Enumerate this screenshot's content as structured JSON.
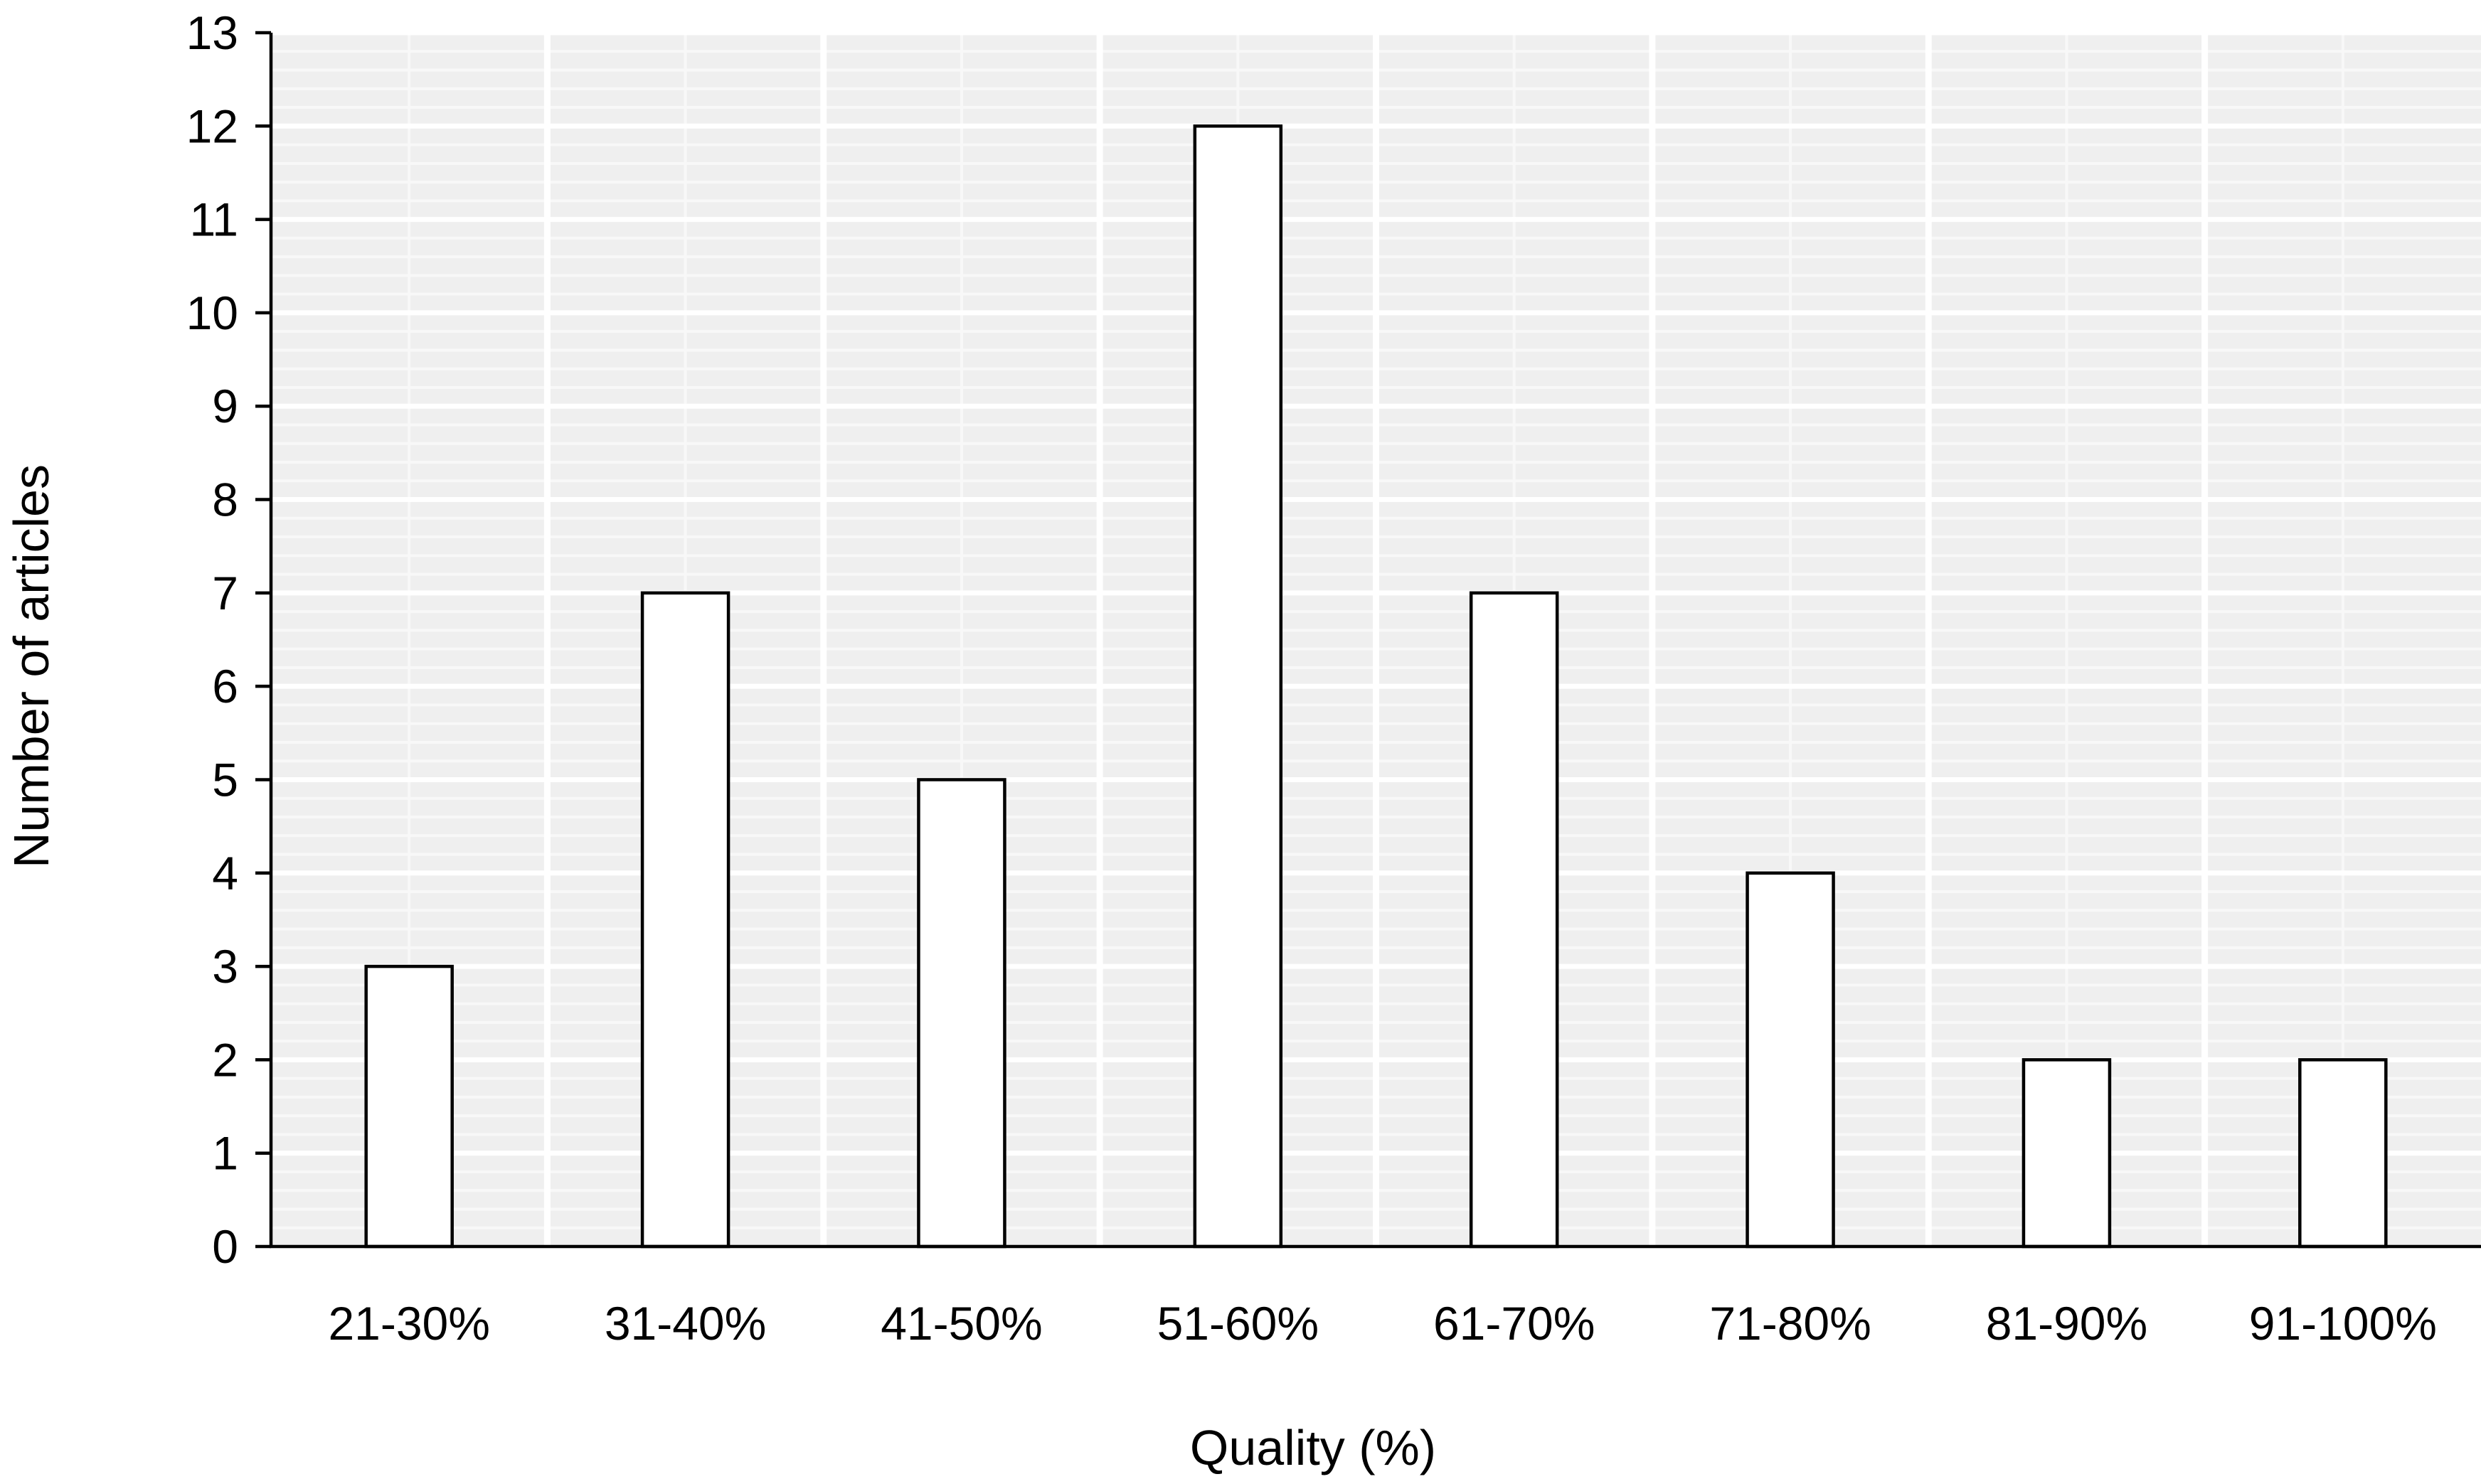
{
  "chart_data": {
    "type": "bar",
    "title": "",
    "xlabel": "Quality (%)",
    "ylabel": "Number of articles",
    "categories": [
      "21-30%",
      "31-40%",
      "41-50%",
      "51-60%",
      "61-70%",
      "71-80%",
      "81-90%",
      "91-100%"
    ],
    "values": [
      3,
      7,
      5,
      12,
      7,
      4,
      2,
      2
    ],
    "ylim": [
      0,
      13
    ],
    "yticks": [
      "0",
      "1",
      "2",
      "3",
      "4",
      "5",
      "6",
      "7",
      "8",
      "9",
      "10",
      "11",
      "12",
      "13"
    ],
    "grid": true,
    "legend": "none",
    "colors": {
      "bar_fill": "#ffffff",
      "bar_stroke": "#000000",
      "plot_background": "#efefef",
      "grid_major": "#ffffff",
      "grid_minor": "#f8f8f8",
      "axis": "#000000"
    }
  }
}
